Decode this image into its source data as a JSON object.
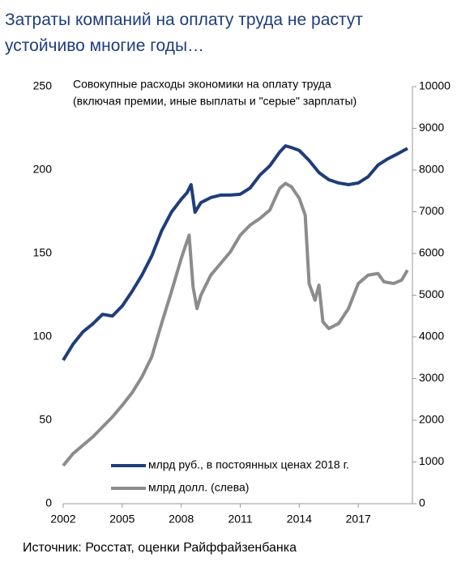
{
  "chart_data": {
    "type": "line",
    "title": [
      "Затраты компаний на оплату труда не растут",
      "устойчиво многие годы…"
    ],
    "annotation": [
      "Совокупные расходы экономики на оплату труда",
      "(включая премии, иные выплаты и \"серые\" зарплаты)"
    ],
    "source": "Источник: Росстат, оценки Райффайзенбанка",
    "xlim": [
      2002,
      2019.75
    ],
    "xticks": [
      2002,
      2005,
      2008,
      2011,
      2014,
      2017
    ],
    "ylim": [
      0,
      250
    ],
    "yticks": [
      0,
      50,
      100,
      150,
      200,
      250
    ],
    "y2lim": [
      0,
      10000
    ],
    "y2ticks": [
      0,
      1000,
      2000,
      3000,
      4000,
      5000,
      6000,
      7000,
      8000,
      9000,
      10000
    ],
    "series": [
      {
        "name": "млрд руб., в постоянных ценах 2018 г.",
        "color": "#1f3d7a",
        "axis": "y2",
        "x": [
          2002,
          2002.5,
          2003,
          2003.5,
          2004,
          2004.5,
          2005,
          2005.5,
          2006,
          2006.5,
          2007,
          2007.5,
          2008,
          2008.3,
          2008.5,
          2008.7,
          2009,
          2009.5,
          2010,
          2010.5,
          2011,
          2011.5,
          2012,
          2012.5,
          2013,
          2013.3,
          2013.6,
          2014,
          2014.5,
          2015,
          2015.5,
          2016,
          2016.5,
          2017,
          2017.5,
          2018,
          2018.5,
          2019,
          2019.5
        ],
        "values": [
          3440,
          3825,
          4120,
          4310,
          4540,
          4500,
          4740,
          5090,
          5480,
          5940,
          6540,
          6990,
          7300,
          7460,
          7650,
          6990,
          7220,
          7340,
          7400,
          7400,
          7420,
          7570,
          7880,
          8100,
          8430,
          8580,
          8540,
          8470,
          8230,
          7940,
          7770,
          7690,
          7650,
          7690,
          7840,
          8120,
          8270,
          8390,
          8520
        ]
      },
      {
        "name": "млрд долл. (слева)",
        "color": "#8c8c8c",
        "x": [
          2002,
          2002.5,
          2003,
          2003.5,
          2004,
          2004.5,
          2005,
          2005.5,
          2006,
          2006.5,
          2007,
          2007.5,
          2008,
          2008.4,
          2008.6,
          2008.8,
          2009,
          2009.5,
          2010,
          2010.5,
          2011,
          2011.5,
          2012,
          2012.5,
          2013,
          2013.3,
          2013.6,
          2014,
          2014.3,
          2014.5,
          2014.8,
          2015,
          2015.2,
          2015.5,
          2016,
          2016.5,
          2017,
          2017.5,
          2018,
          2018.3,
          2018.8,
          2019.2,
          2019.5
        ],
        "values": [
          22.8,
          30,
          35,
          40,
          46,
          52,
          59,
          66.5,
          76,
          88,
          108,
          127,
          147,
          161,
          130,
          117,
          125,
          137,
          144,
          151,
          161,
          167,
          171,
          176,
          189,
          192,
          190,
          183,
          173,
          132,
          122,
          131,
          109,
          105,
          108,
          117,
          132,
          137,
          138,
          133,
          132,
          134,
          140
        ]
      }
    ]
  }
}
